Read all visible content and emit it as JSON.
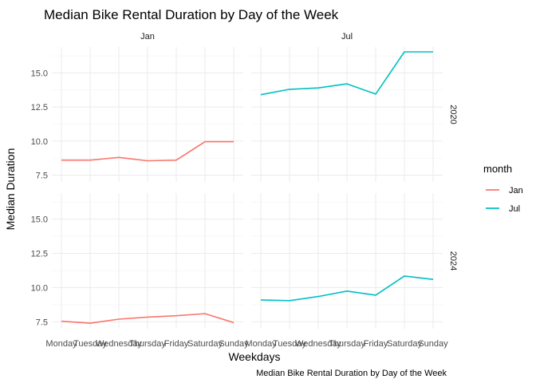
{
  "chart_data": {
    "type": "line",
    "title": "Median Bike Rental Duration by Day of the Week",
    "xlabel": "Weekdays",
    "ylabel": "Median Duration",
    "caption": "Median Bike Rental Duration by Day of the Week",
    "categories": [
      "Monday",
      "Tuesday",
      "Wednesday",
      "Thursday",
      "Friday",
      "Saturday",
      "Sunday"
    ],
    "ylim": [
      7.0,
      16.9
    ],
    "yticks": [
      "7.5",
      "10.0",
      "12.5",
      "15.0"
    ],
    "ytick_values": [
      7.5,
      10.0,
      12.5,
      15.0
    ],
    "grid": true,
    "legend": {
      "title": "month",
      "position": "right",
      "entries": [
        {
          "label": "Jan",
          "color": "#F8766D"
        },
        {
          "label": "Jul",
          "color": "#00BFC4"
        }
      ]
    },
    "facet_cols": [
      "Jan",
      "Jul"
    ],
    "facet_rows": [
      "2020",
      "2024"
    ],
    "panels": [
      {
        "year": "2020",
        "month": "Jan",
        "color": "#F8766D",
        "values": [
          8.6,
          8.6,
          8.8,
          8.55,
          8.6,
          9.95,
          9.95
        ]
      },
      {
        "year": "2020",
        "month": "Jul",
        "color": "#00BFC4",
        "values": [
          13.4,
          13.8,
          13.9,
          14.2,
          13.45,
          16.55,
          16.55
        ]
      },
      {
        "year": "2024",
        "month": "Jan",
        "color": "#F8766D",
        "values": [
          7.55,
          7.4,
          7.7,
          7.85,
          7.95,
          8.1,
          7.45
        ]
      },
      {
        "year": "2024",
        "month": "Jul",
        "color": "#00BFC4",
        "values": [
          9.1,
          9.05,
          9.35,
          9.75,
          9.45,
          10.85,
          10.6
        ]
      }
    ]
  }
}
